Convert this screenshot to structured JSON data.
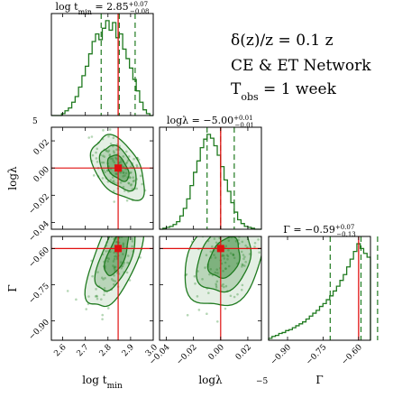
{
  "annotation": {
    "line1": "δ(z)/z = 0.1 z",
    "line2": "CE & ET Network",
    "line3": "T",
    "line3_sub": "obs",
    "line3_rest": " = 1 week"
  },
  "colors": {
    "contour": "#1f7a1f",
    "truth": "#e01010",
    "points": "#2e8b2e"
  },
  "chart_data": {
    "type": "corner",
    "parameters": [
      {
        "name": "logt_min",
        "label": "log t",
        "label_sub": "min",
        "range": [
          2.55,
          3.0
        ],
        "ticks": [
          2.6,
          2.7,
          2.8,
          2.9
        ],
        "tick_labels": [
          "2.6",
          "2.7",
          "2.8",
          "2.9"
        ],
        "edge_tick_label": "3.0",
        "median": 2.85,
        "q_low": 2.77,
        "q_high": 2.92,
        "truth": 2.845,
        "title_prefix": "log t",
        "title_sub": "min",
        "title_value": " = 2.85",
        "title_sup": "+0.07",
        "title_inf": "−0.08",
        "hist_y": [
          0.0,
          0.0,
          0.0,
          0.02,
          0.05,
          0.08,
          0.14,
          0.2,
          0.3,
          0.42,
          0.52,
          0.65,
          0.78,
          0.86,
          0.8,
          0.92,
          1.0,
          0.9,
          0.98,
          0.82,
          0.86,
          0.7,
          0.6,
          0.5,
          0.38,
          0.26,
          0.14,
          0.06,
          0.02,
          0.0
        ]
      },
      {
        "name": "loglambda",
        "label": "logλ",
        "range": [
          -0.045,
          0.03
        ],
        "ticks": [
          -0.04,
          -0.02,
          0.0,
          0.02
        ],
        "tick_labels": [
          "−0.04",
          "−0.02",
          "0.00",
          "0.02"
        ],
        "scale_note": "−5",
        "median": 0.0,
        "q_low": -0.01,
        "q_high": 0.01,
        "truth": 0.0,
        "title_prefix": "logλ",
        "title_value": " = −5.00",
        "title_sup": "+0.01",
        "title_inf": "−0.01",
        "hist_y": [
          0.0,
          0.01,
          0.02,
          0.03,
          0.05,
          0.08,
          0.14,
          0.22,
          0.32,
          0.46,
          0.6,
          0.72,
          0.86,
          0.95,
          1.0,
          0.96,
          0.88,
          0.78,
          0.66,
          0.52,
          0.4,
          0.28,
          0.18,
          0.1,
          0.06,
          0.03,
          0.02,
          0.01,
          0.0,
          0.0
        ]
      },
      {
        "name": "Gamma",
        "label": "Γ",
        "range": [
          -0.98,
          -0.55
        ],
        "ticks": [
          -0.9,
          -0.75,
          -0.6
        ],
        "tick_labels": [
          "−0.90",
          "−0.75",
          "−0.60"
        ],
        "median": -0.59,
        "q_low": -0.72,
        "q_high": -0.52,
        "truth": -0.6,
        "title_prefix": "Γ",
        "title_value": " = −0.59",
        "title_sup": "+0.07",
        "title_inf": "−0.13",
        "hist_y": [
          0.02,
          0.04,
          0.05,
          0.07,
          0.08,
          0.1,
          0.11,
          0.13,
          0.15,
          0.17,
          0.19,
          0.22,
          0.25,
          0.28,
          0.31,
          0.35,
          0.38,
          0.42,
          0.46,
          0.51,
          0.56,
          0.62,
          0.68,
          0.76,
          0.84,
          0.92,
          1.0,
          0.95,
          0.9,
          0.86
        ]
      }
    ],
    "diag_tick_labels": [
      "5"
    ],
    "pairs": [
      {
        "x": "logt_min",
        "y": "loglambda",
        "center": [
          2.845,
          0.0
        ],
        "sigma": [
          0.045,
          0.009
        ],
        "rho": -0.45
      },
      {
        "x": "logt_min",
        "y": "Gamma",
        "center": [
          2.84,
          -0.62
        ],
        "sigma": [
          0.05,
          0.09
        ],
        "rho": 0.65
      },
      {
        "x": "loglambda",
        "y": "Gamma",
        "center": [
          0.003,
          -0.64
        ],
        "sigma": [
          0.011,
          0.08
        ],
        "rho": 0.3
      }
    ],
    "levels": [
      0.39,
      0.86,
      0.99
    ]
  }
}
